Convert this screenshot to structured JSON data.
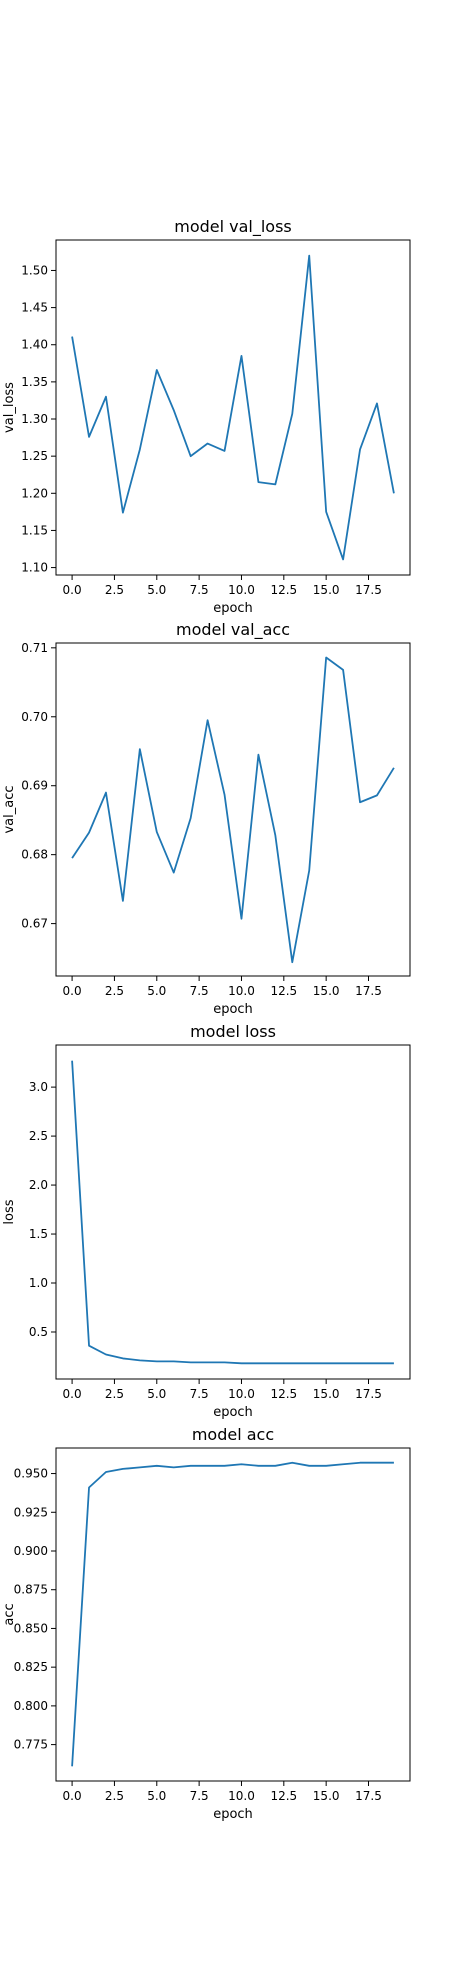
{
  "chart_data": [
    {
      "type": "line",
      "title": "model val_loss",
      "xlabel": "epoch",
      "ylabel": "val_loss",
      "xlim": [
        -0.95,
        19.95
      ],
      "ylim": [
        1.09,
        1.541
      ],
      "xticks": [
        0.0,
        2.5,
        5.0,
        7.5,
        10.0,
        12.5,
        15.0,
        17.5
      ],
      "xtick_labels": [
        "0.0",
        "2.5",
        "5.0",
        "7.5",
        "10.0",
        "12.5",
        "15.0",
        "17.5"
      ],
      "yticks": [
        1.1,
        1.15,
        1.2,
        1.25,
        1.3,
        1.35,
        1.4,
        1.45,
        1.5
      ],
      "ytick_labels": [
        "1.10",
        "1.15",
        "1.20",
        "1.25",
        "1.30",
        "1.35",
        "1.40",
        "1.45",
        "1.50"
      ],
      "line_color": "#1f77b4",
      "series": [
        {
          "x": [
            0,
            1,
            2,
            3,
            4,
            5,
            6,
            7,
            8,
            9,
            10,
            11,
            12,
            13,
            14,
            15,
            16,
            17,
            18,
            19
          ],
          "values": [
            1.411,
            1.276,
            1.33,
            1.174,
            1.259,
            1.366,
            1.312,
            1.25,
            1.267,
            1.257,
            1.385,
            1.215,
            1.212,
            1.307,
            1.52,
            1.175,
            1.111,
            1.259,
            1.321,
            1.2
          ]
        }
      ]
    },
    {
      "type": "line",
      "title": "model val_acc",
      "xlabel": "epoch",
      "ylabel": "val_acc",
      "xlim": [
        -0.95,
        19.95
      ],
      "ylim": [
        0.6624,
        0.7107
      ],
      "xticks": [
        0.0,
        2.5,
        5.0,
        7.5,
        10.0,
        12.5,
        15.0,
        17.5
      ],
      "xtick_labels": [
        "0.0",
        "2.5",
        "5.0",
        "7.5",
        "10.0",
        "12.5",
        "15.0",
        "17.5"
      ],
      "yticks": [
        0.67,
        0.68,
        0.69,
        0.7,
        0.71
      ],
      "ytick_labels": [
        "0.67",
        "0.68",
        "0.69",
        "0.70",
        "0.71"
      ],
      "line_color": "#1f77b4",
      "series": [
        {
          "x": [
            0,
            1,
            2,
            3,
            4,
            5,
            6,
            7,
            8,
            9,
            10,
            11,
            12,
            13,
            14,
            15,
            16,
            17,
            18,
            19
          ],
          "values": [
            0.6795,
            0.6832,
            0.689,
            0.6733,
            0.6953,
            0.6833,
            0.6774,
            0.6853,
            0.6995,
            0.6887,
            0.6707,
            0.6945,
            0.6828,
            0.6644,
            0.6777,
            0.7086,
            0.7068,
            0.6876,
            0.6886,
            0.6926
          ]
        }
      ]
    },
    {
      "type": "line",
      "title": "model loss",
      "xlabel": "epoch",
      "ylabel": "loss",
      "xlim": [
        -0.95,
        19.95
      ],
      "ylim": [
        0.02,
        3.43
      ],
      "xticks": [
        0.0,
        2.5,
        5.0,
        7.5,
        10.0,
        12.5,
        15.0,
        17.5
      ],
      "xtick_labels": [
        "0.0",
        "2.5",
        "5.0",
        "7.5",
        "10.0",
        "12.5",
        "15.0",
        "17.5"
      ],
      "yticks": [
        0.5,
        1.0,
        1.5,
        2.0,
        2.5,
        3.0
      ],
      "ytick_labels": [
        "0.5",
        "1.0",
        "1.5",
        "2.0",
        "2.5",
        "3.0"
      ],
      "line_color": "#1f77b4",
      "series": [
        {
          "x": [
            0,
            1,
            2,
            3,
            4,
            5,
            6,
            7,
            8,
            9,
            10,
            11,
            12,
            13,
            14,
            15,
            16,
            17,
            18,
            19
          ],
          "values": [
            3.27,
            0.36,
            0.27,
            0.23,
            0.21,
            0.2,
            0.2,
            0.19,
            0.19,
            0.19,
            0.18,
            0.18,
            0.18,
            0.18,
            0.18,
            0.18,
            0.18,
            0.18,
            0.18,
            0.18
          ]
        }
      ]
    },
    {
      "type": "line",
      "title": "model acc",
      "xlabel": "epoch",
      "ylabel": "acc",
      "xlim": [
        -0.95,
        19.95
      ],
      "ylim": [
        0.7515,
        0.9665
      ],
      "xticks": [
        0.0,
        2.5,
        5.0,
        7.5,
        10.0,
        12.5,
        15.0,
        17.5
      ],
      "xtick_labels": [
        "0.0",
        "2.5",
        "5.0",
        "7.5",
        "10.0",
        "12.5",
        "15.0",
        "17.5"
      ],
      "yticks": [
        0.775,
        0.8,
        0.825,
        0.85,
        0.875,
        0.9,
        0.925,
        0.95
      ],
      "ytick_labels": [
        "0.775",
        "0.800",
        "0.825",
        "0.850",
        "0.875",
        "0.900",
        "0.925",
        "0.950"
      ],
      "line_color": "#1f77b4",
      "series": [
        {
          "x": [
            0,
            1,
            2,
            3,
            4,
            5,
            6,
            7,
            8,
            9,
            10,
            11,
            12,
            13,
            14,
            15,
            16,
            17,
            18,
            19
          ],
          "values": [
            0.761,
            0.941,
            0.951,
            0.953,
            0.954,
            0.955,
            0.954,
            0.955,
            0.955,
            0.955,
            0.956,
            0.955,
            0.955,
            0.957,
            0.955,
            0.955,
            0.956,
            0.957,
            0.957,
            0.957
          ]
        }
      ]
    }
  ]
}
